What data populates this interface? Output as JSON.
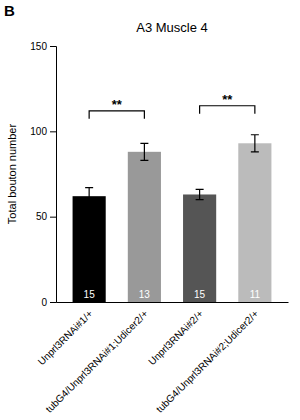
{
  "chart_data": {
    "type": "bar",
    "title": "A3 Muscle 4",
    "ylabel": "Total bouton number",
    "panel_label": "B",
    "categories": [
      "Unprl3RNAi#1/+",
      "tubG4/Unprl3RNAi#1;Udicer2/+",
      "Unprl3RNAi#2/+",
      "tubG4/Unprl3RNAi#2;Udicer2/+"
    ],
    "values": [
      62,
      88,
      63,
      93
    ],
    "errors": [
      5,
      5,
      3,
      5
    ],
    "colors": [
      "#000000",
      "#999999",
      "#555555",
      "#bbbbbb"
    ],
    "n_labels": [
      "15",
      "13",
      "15",
      "11"
    ],
    "significance": [
      {
        "pair": [
          0,
          1
        ],
        "y": 112,
        "label": "**"
      },
      {
        "pair": [
          2,
          3
        ],
        "y": 115,
        "label": "**"
      }
    ],
    "ylim": [
      0,
      150
    ],
    "yticks": [
      0,
      50,
      100,
      150
    ],
    "grid": false
  }
}
